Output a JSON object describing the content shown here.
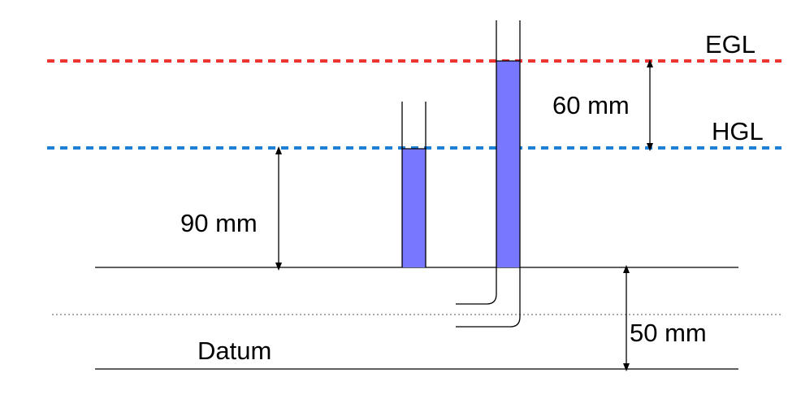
{
  "labels": {
    "egl": "EGL",
    "hgl": "HGL",
    "dim_60": "60 mm",
    "dim_90": "90 mm",
    "dim_50": "50 mm",
    "datum": "Datum"
  },
  "colors": {
    "egl_line": "#ee3333",
    "hgl_line": "#1e7fd6",
    "water_fill": "#7878ff",
    "line": "#000000",
    "center_dotted": "#777777"
  }
}
